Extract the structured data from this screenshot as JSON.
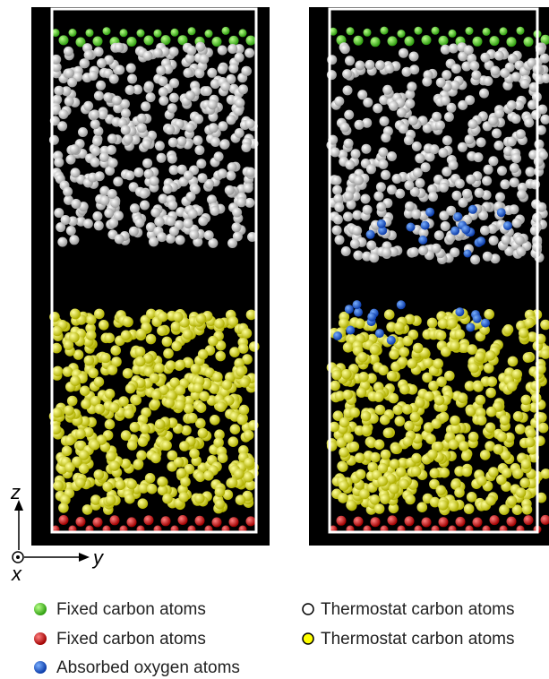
{
  "axes": {
    "z": "z",
    "y": "y",
    "x": "x"
  },
  "legend": [
    {
      "label": "Fixed carbon atoms"
    },
    {
      "label": "Fixed carbon atoms"
    },
    {
      "label": "Absorbed oxygen atoms"
    },
    {
      "label": "Thermostat carbon atoms"
    },
    {
      "label": "Thermostat carbon atoms"
    }
  ]
}
